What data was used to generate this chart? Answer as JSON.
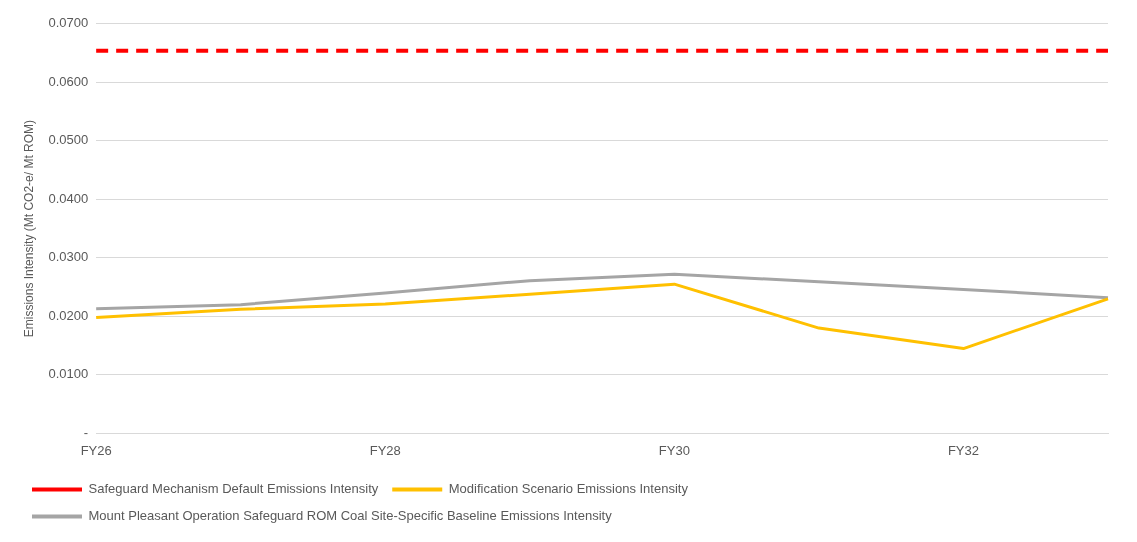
{
  "chart_data": {
    "type": "line",
    "ylabel": "Emissions Intensity (Mt CO2-e/ Mt ROM)",
    "categories": [
      "FY26",
      null,
      "FY28",
      null,
      "FY30",
      null,
      "FY32",
      null
    ],
    "series": [
      {
        "name": "Safeguard Mechanism Default Emissions Intensity",
        "color": "#ff0000",
        "line_style": "dashed",
        "values": [
          0.0654,
          0.0654,
          0.0654,
          0.0654,
          0.0654,
          0.0654,
          0.0654,
          0.0654
        ]
      },
      {
        "name": "Modification Scenario Emissions Intensity",
        "color": "#ffc000",
        "values": [
          0.0198,
          0.0212,
          0.0221,
          0.0238,
          0.0255,
          0.018,
          0.0145,
          0.023
        ]
      },
      {
        "name": "Mount Pleasant Operation Safeguard ROM Coal Site-Specific Baseline Emissions Intensity",
        "color": "#a5a5a5",
        "values": [
          0.0213,
          0.022,
          0.024,
          0.0261,
          0.0272,
          0.0259,
          0.0246,
          0.0232
        ]
      }
    ],
    "ylim": [
      0,
      0.07
    ],
    "yticks": [
      {
        "value": 0,
        "label": "-"
      },
      {
        "value": 0.01,
        "label": "0.0100"
      },
      {
        "value": 0.02,
        "label": "0.0200"
      },
      {
        "value": 0.03,
        "label": "0.0300"
      },
      {
        "value": 0.04,
        "label": "0.0400"
      },
      {
        "value": 0.05,
        "label": "0.0500"
      },
      {
        "value": 0.06,
        "label": "0.0600"
      },
      {
        "value": 0.07,
        "label": "0.0700"
      }
    ],
    "grid": "y",
    "legend": "bottom",
    "marker": "none"
  }
}
